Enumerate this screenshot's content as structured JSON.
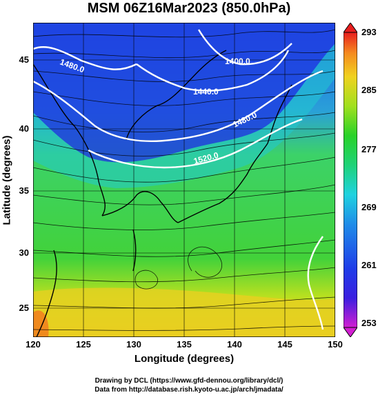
{
  "title": "MSM 06Z16Mar2023 (850.0hPa)",
  "x_axis": {
    "label": "Longitude (degrees)",
    "ticks": [
      "120",
      "125",
      "130",
      "135",
      "140",
      "145",
      "150"
    ],
    "range": [
      120,
      150
    ]
  },
  "y_axis": {
    "label": "Latitude  (degrees)",
    "ticks": [
      "25",
      "30",
      "35",
      "40",
      "45"
    ],
    "range": [
      22.4,
      47.6
    ]
  },
  "colorbar": {
    "ticks": [
      "253",
      "261",
      "269",
      "277",
      "285",
      "293"
    ],
    "range": [
      253,
      293
    ]
  },
  "contour_labels": [
    "1480.0",
    "1440.0",
    "1400.0",
    "1480.0",
    "1520.0"
  ],
  "credits": {
    "line1": "Drawing by DCL (https://www.gfd-dennou.org/library/dcl/)",
    "line2": "Data from http://database.rish.kyoto-u.ac.jp/arch/jmadata/"
  },
  "colors": {
    "cold": "#1a2ee0",
    "cyan": "#19c8e6",
    "green": "#1ed24a",
    "yellowgreen": "#a8e61e",
    "yellow": "#f0d21e",
    "orange": "#f58a1e"
  }
}
